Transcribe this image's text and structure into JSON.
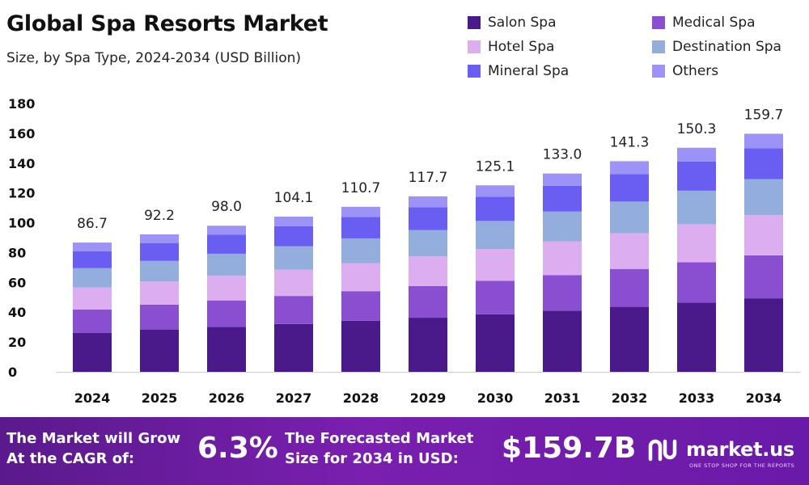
{
  "header": {
    "title": "Global Spa Resorts Market",
    "subtitle": "Size, by Spa Type, 2024-2034 (USD Billion)"
  },
  "chart_data": {
    "type": "bar",
    "stacked": true,
    "categories": [
      "2024",
      "2025",
      "2026",
      "2027",
      "2028",
      "2029",
      "2030",
      "2031",
      "2032",
      "2033",
      "2034"
    ],
    "ylim": [
      0,
      180
    ],
    "yticks": [
      0,
      20,
      40,
      60,
      80,
      100,
      120,
      140,
      160,
      180
    ],
    "grid": false,
    "legend_position": "top-right",
    "series": [
      {
        "name": "Salon Spa",
        "color": "#4b1a8a",
        "values": [
          26.2,
          28.4,
          30.2,
          32.1,
          34.2,
          36.3,
          38.6,
          41.0,
          43.6,
          46.4,
          49.3
        ]
      },
      {
        "name": "Medical Spa",
        "color": "#8a4fd0",
        "values": [
          15.6,
          16.6,
          17.7,
          18.8,
          19.9,
          21.2,
          22.5,
          23.9,
          25.4,
          27.1,
          28.8
        ]
      },
      {
        "name": "Hotel Spa",
        "color": "#dcaef0",
        "values": [
          14.7,
          15.6,
          16.6,
          17.7,
          18.8,
          20.0,
          21.3,
          22.6,
          24.0,
          25.5,
          27.1
        ]
      },
      {
        "name": "Destination Spa",
        "color": "#93aedd",
        "values": [
          13.0,
          13.8,
          14.7,
          15.6,
          16.6,
          17.6,
          18.8,
          20.0,
          21.2,
          22.5,
          24.0
        ]
      },
      {
        "name": "Mineral Spa",
        "color": "#6a5ef2",
        "values": [
          11.3,
          12.0,
          12.7,
          13.5,
          14.4,
          15.3,
          16.3,
          17.3,
          18.4,
          19.5,
          20.8
        ]
      },
      {
        "name": "Others",
        "color": "#9d92f5",
        "values": [
          5.9,
          5.8,
          6.1,
          6.4,
          6.8,
          7.3,
          7.6,
          8.2,
          8.7,
          9.3,
          9.7
        ]
      }
    ],
    "totals_labels": [
      "86.7",
      "92.2",
      "98.0",
      "104.1",
      "110.7",
      "117.7",
      "125.1",
      "133.0",
      "141.3",
      "150.3",
      "159.7"
    ],
    "totals": [
      86.7,
      92.2,
      98.0,
      104.1,
      110.7,
      117.7,
      125.1,
      133.0,
      141.3,
      150.3,
      159.7
    ]
  },
  "footer": {
    "cagr_line1": "The Market will Grow",
    "cagr_line2": "At the CAGR of:",
    "cagr_value": "6.3%",
    "forecast_line1": "The Forecasted Market",
    "forecast_line2": "Size for 2034 in USD:",
    "forecast_value": "$159.7B",
    "logo_text": "market.us",
    "logo_tagline": "ONE STOP SHOP FOR THE REPORTS"
  }
}
